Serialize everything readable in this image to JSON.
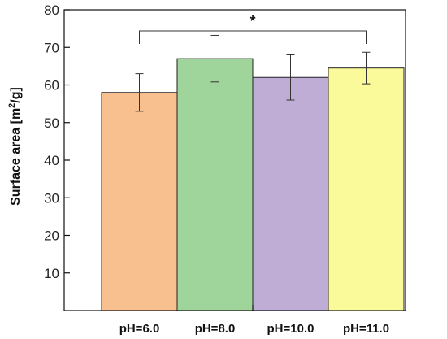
{
  "chart_data": {
    "type": "bar",
    "categories": [
      "pH=6.0",
      "pH=8.0",
      "pH=10.0",
      "pH=11.0"
    ],
    "values": [
      58,
      67,
      62,
      64.5
    ],
    "errors": [
      5,
      6.2,
      6,
      4.2
    ],
    "colors": [
      "#f9c08f",
      "#9fd49a",
      "#bfadd6",
      "#fafa9a"
    ],
    "ylabel_main": "Surface area [m",
    "ylabel_sup": "2",
    "ylabel_end": "/g]",
    "ylim": [
      0,
      80
    ],
    "yticks": [
      10,
      20,
      30,
      40,
      50,
      60,
      70,
      80
    ],
    "significance": {
      "from": 0,
      "to": 3,
      "label": "*"
    },
    "grid": false
  }
}
